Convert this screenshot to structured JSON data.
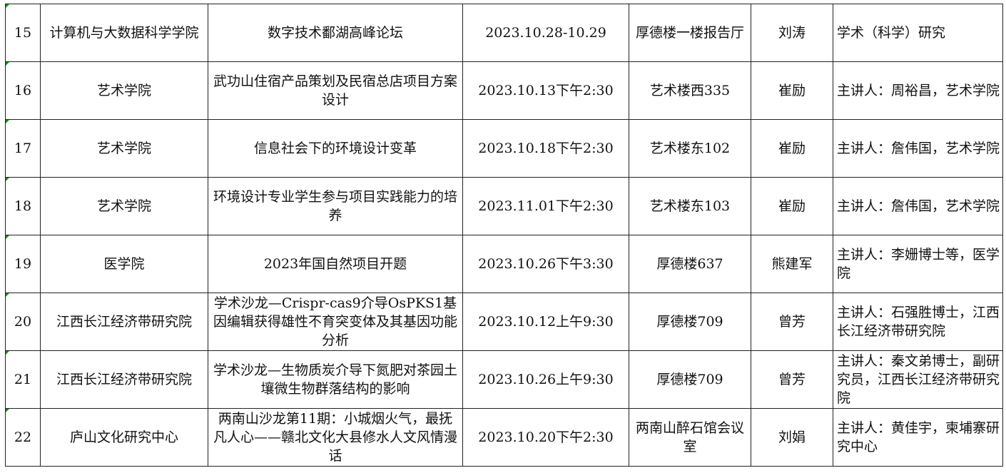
{
  "rows": [
    {
      "no": "15",
      "college": "计算机与大数据科学学院",
      "title": "数字技术鄱湖高峰论坛",
      "time": "2023.10.28-10.29",
      "place": "厚德楼一楼报告厅",
      "contact": "刘涛",
      "note": "学术（科学）研究"
    },
    {
      "no": "16",
      "college": "艺术学院",
      "title": "武功山住宿产品策划及民宿总店项目方案设计",
      "time": "2023.10.13下午2:30",
      "place": "艺术楼西335",
      "contact": "崔励",
      "note": "主讲人：周裕昌，艺术学院"
    },
    {
      "no": "17",
      "college": "艺术学院",
      "title": "信息社会下的环境设计变革",
      "time": "2023.10.18下午2:30",
      "place": "艺术楼东102",
      "contact": "崔励",
      "note": "主讲人：詹伟国，艺术学院"
    },
    {
      "no": "18",
      "college": "艺术学院",
      "title": "环境设计专业学生参与项目实践能力的培养",
      "time": "2023.11.01下午2:30",
      "place": "艺术楼东103",
      "contact": "崔励",
      "note": "主讲人：詹伟国，艺术学院"
    },
    {
      "no": "19",
      "college": "医学院",
      "title": "2023年国自然项目开题",
      "time": "2023.10.26下午3:30",
      "place": "厚德楼637",
      "contact": "熊建军",
      "note": "主讲人：李姗博士等，医学院"
    },
    {
      "no": "20",
      "college": "江西长江经济带研究院",
      "title": "学术沙龙—Crispr-cas9介导OsPKS1基因编辑获得雄性不育突变体及其基因功能分析",
      "time": "2023.10.12上午9:30",
      "place": "厚德楼709",
      "contact": "曾芳",
      "note": "主讲人：石强胜博士，江西长江经济带研究院"
    },
    {
      "no": "21",
      "college": "江西长江经济带研究院",
      "title": "学术沙龙—生物质炭介导下氮肥对茶园土壤微生物群落结构的影响",
      "time": "2023.10.26上午9:30",
      "place": "厚德楼709",
      "contact": "曾芳",
      "note": "主讲人：秦文弟博士，副研究员，江西长江经济带研究院"
    },
    {
      "no": "22",
      "college": "庐山文化研究中心",
      "title": "两南山沙龙第11期：小城烟火气，最抚凡人心——赣北文化大县修水人文风情漫话",
      "time": "2023.10.20下午2:30",
      "place": "两南山醉石馆会议室",
      "contact": "刘娟",
      "note": "主讲人：黄佳宇，柬埔寨研究中心"
    }
  ]
}
